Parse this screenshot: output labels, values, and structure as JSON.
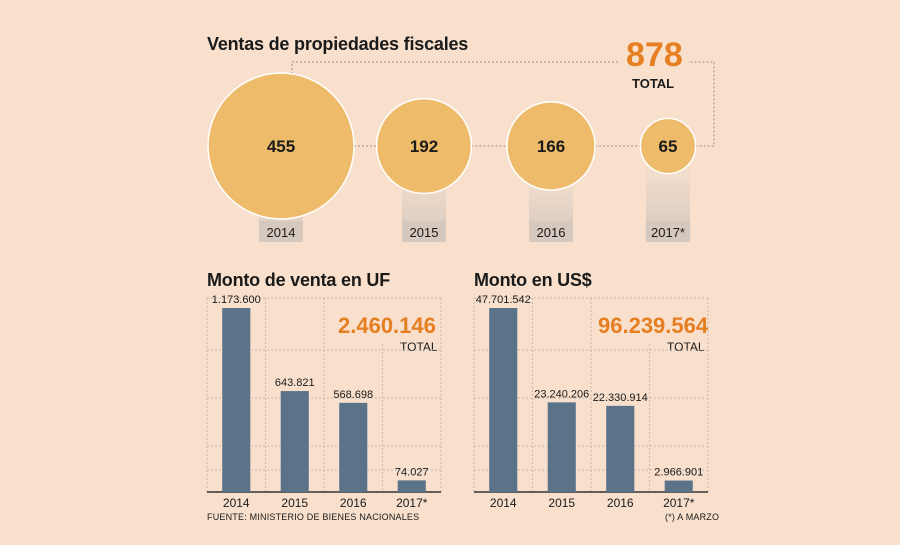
{
  "bubbles": {
    "title": "Ventas de propiedades fiscales",
    "total_value": "878",
    "total_label": "TOTAL",
    "accent": "#e67e22",
    "bubble_color": "#edbb6a",
    "year_box_color": "#d4c8bf",
    "items": [
      {
        "year": "2014",
        "label": "455",
        "value": 455
      },
      {
        "year": "2015",
        "label": "192",
        "value": 192
      },
      {
        "year": "2016",
        "label": "166",
        "value": 166
      },
      {
        "year": "2017*",
        "label": "65",
        "value": 65
      }
    ]
  },
  "uf": {
    "title": "Monto de venta en UF",
    "total_value": "2.460.146",
    "total_label": "TOTAL"
  },
  "usd": {
    "title": "Monto en US$",
    "total_value": "96.239.564",
    "total_label": "TOTAL"
  },
  "footer": {
    "source": "FUENTE: MINISTERIO DE BIENES NACIONALES",
    "note": "(*) A MARZO"
  },
  "chart_data": [
    {
      "type": "bar",
      "title": "Ventas de propiedades fiscales",
      "categories": [
        "2014",
        "2015",
        "2016",
        "2017*"
      ],
      "values": [
        455,
        192,
        166,
        65
      ],
      "value_labels": [
        "455",
        "192",
        "166",
        "65"
      ],
      "total": "878"
    },
    {
      "type": "bar",
      "title": "Monto de venta en UF",
      "categories": [
        "2014",
        "2015",
        "2016",
        "2017*"
      ],
      "values": [
        1173600,
        643821,
        568698,
        74027
      ],
      "value_labels": [
        "1.173.600",
        "643.821",
        "568.698",
        "74.027"
      ],
      "bar_color": "#5a7389",
      "ylim": [
        0,
        1200000
      ],
      "total": "2.460.146"
    },
    {
      "type": "bar",
      "title": "Monto en US$",
      "categories": [
        "2014",
        "2015",
        "2016",
        "2017*"
      ],
      "values": [
        47701542,
        23240206,
        22330914,
        2966901
      ],
      "value_labels": [
        "47.701.542",
        "23.240.206",
        "22.330.914",
        "2.966.901"
      ],
      "bar_color": "#5a7389",
      "ylim": [
        0,
        50000000
      ],
      "total": "96.239.564"
    }
  ]
}
